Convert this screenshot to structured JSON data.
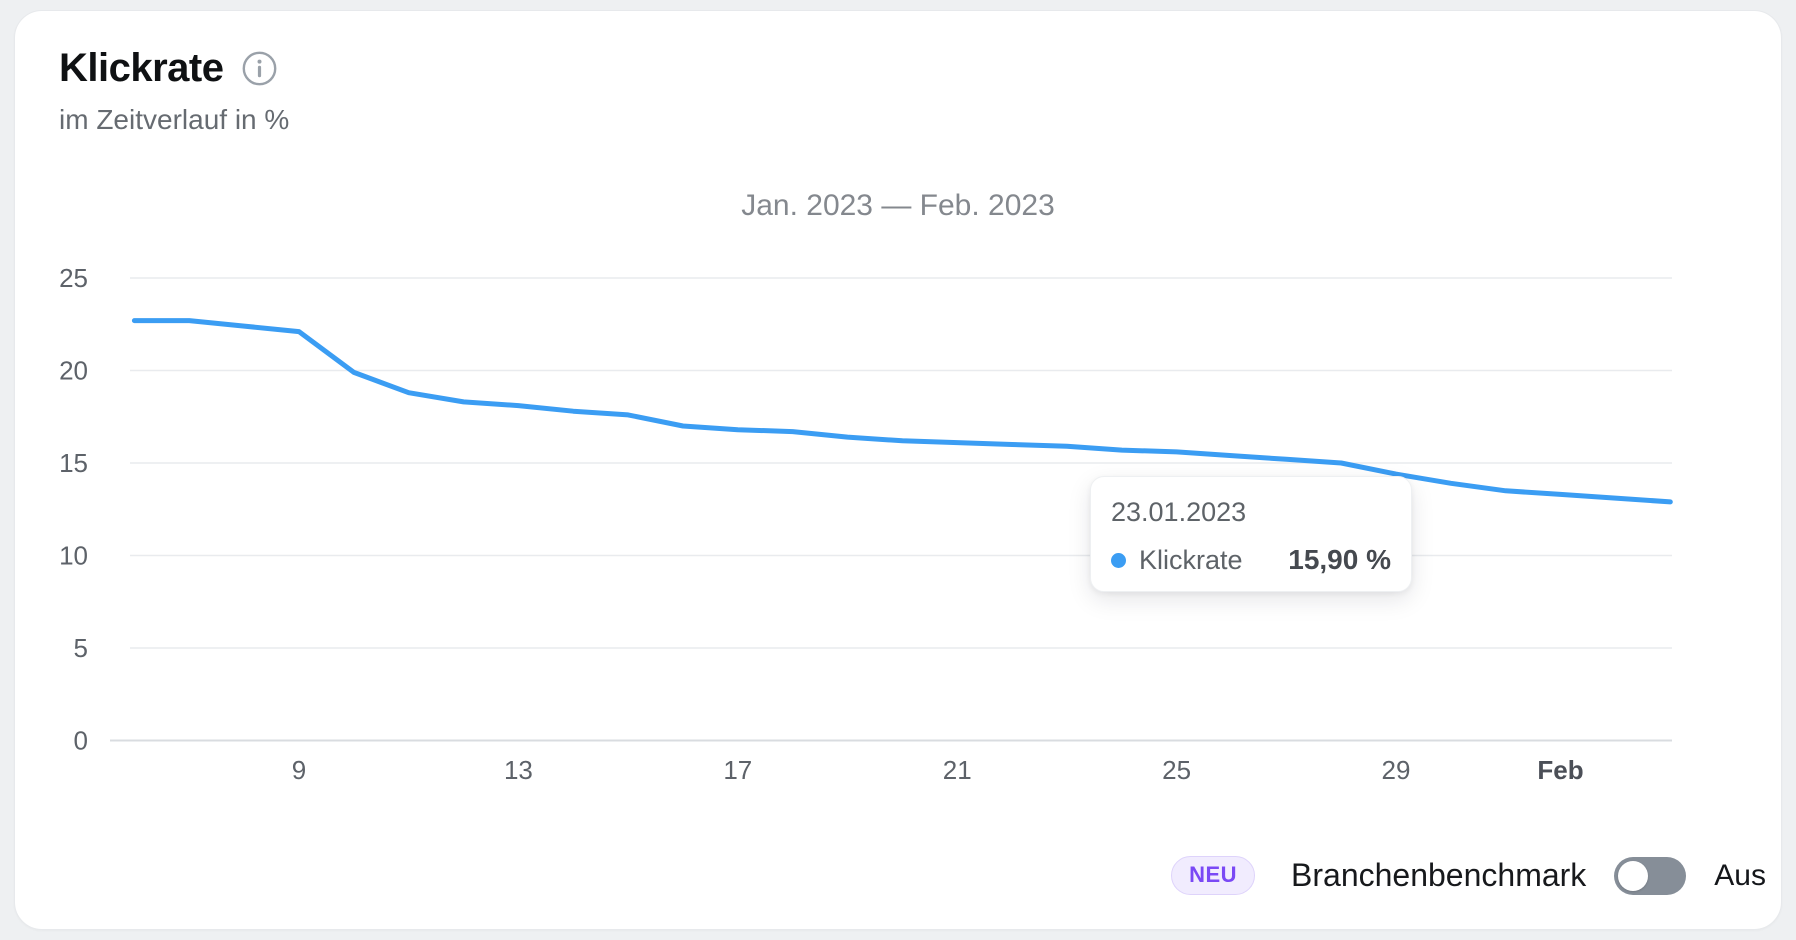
{
  "header": {
    "title": "Klickrate",
    "subtitle": "im Zeitverlauf in %"
  },
  "chart": {
    "period_label": "Jan. 2023 — Feb. 2023"
  },
  "chart_data": {
    "type": "line",
    "title": "Klickrate im Zeitverlauf in %",
    "legend": "none",
    "grid": "horizontal",
    "x_axis": {
      "unit": "day of January 2023 (32-34 = Feb 1-3)",
      "range": [
        6,
        34
      ],
      "ticks": [
        {
          "day": 9,
          "label": "9",
          "bold": false
        },
        {
          "day": 13,
          "label": "13",
          "bold": false
        },
        {
          "day": 17,
          "label": "17",
          "bold": false
        },
        {
          "day": 21,
          "label": "21",
          "bold": false
        },
        {
          "day": 25,
          "label": "25",
          "bold": false
        },
        {
          "day": 29,
          "label": "29",
          "bold": false
        },
        {
          "day": 32,
          "label": "Feb",
          "bold": true
        }
      ]
    },
    "y_axis": {
      "unit": "%",
      "range": [
        0,
        25
      ],
      "ticks": [
        25,
        20,
        15,
        10,
        5,
        0
      ]
    },
    "series": [
      {
        "name": "Klickrate",
        "color": "#3b9df3",
        "x_days": [
          6,
          7,
          8,
          9,
          10,
          11,
          12,
          13,
          14,
          15,
          16,
          17,
          18,
          19,
          20,
          21,
          22,
          23,
          24,
          25,
          26,
          27,
          28,
          29,
          30,
          31,
          32,
          33,
          34
        ],
        "values": [
          22.7,
          22.7,
          22.4,
          22.1,
          19.9,
          18.8,
          18.3,
          18.1,
          17.8,
          17.6,
          17.0,
          16.8,
          16.7,
          16.4,
          16.2,
          16.1,
          16.0,
          15.9,
          15.7,
          15.6,
          15.4,
          15.2,
          15.0,
          14.4,
          13.9,
          13.5,
          13.3,
          13.1,
          12.9
        ]
      }
    ]
  },
  "tooltip": {
    "date": "23.01.2023",
    "series_name": "Klickrate",
    "value": "15,90 %",
    "marker_color": "#3b9df3",
    "anchor_day": 23
  },
  "footer": {
    "badge_label": "NEU",
    "benchmark_label": "Branchenbenchmark",
    "toggle_state": "off",
    "toggle_state_label": "Aus"
  },
  "colors": {
    "line": "#3b9df3",
    "grid_line": "#e9ebee",
    "axis_line": "#d9dce0",
    "tick_text": "#5d6269",
    "accent_purple": "#7a49f5",
    "badge_bg": "#f1ecfe",
    "badge_border": "#ded3fb",
    "toggle_track": "#868e98",
    "page_bg": "#eef0f2",
    "card_bg": "#ffffff"
  }
}
